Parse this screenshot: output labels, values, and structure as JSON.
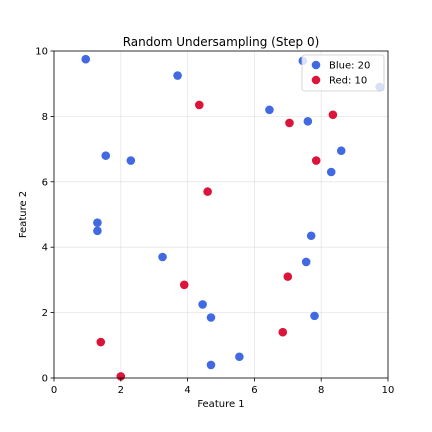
{
  "chart_data": {
    "type": "scatter",
    "title": "Random Undersampling (Step 0)",
    "xlabel": "Feature 1",
    "ylabel": "Feature 2",
    "xlim": [
      0,
      10
    ],
    "ylim": [
      0,
      10
    ],
    "xticks": [
      "0",
      "2",
      "4",
      "6",
      "8",
      "10"
    ],
    "yticks": [
      "0",
      "2",
      "4",
      "6",
      "8",
      "10"
    ],
    "grid": true,
    "legend_position": "top-right",
    "series": [
      {
        "name": "Blue: 20",
        "color": "#4169e1",
        "points": [
          [
            0.95,
            9.75
          ],
          [
            3.7,
            9.25
          ],
          [
            7.45,
            9.7
          ],
          [
            9.75,
            8.9
          ],
          [
            6.45,
            8.2
          ],
          [
            7.6,
            7.85
          ],
          [
            8.6,
            6.95
          ],
          [
            8.3,
            6.3
          ],
          [
            1.55,
            6.8
          ],
          [
            2.3,
            6.65
          ],
          [
            1.3,
            4.75
          ],
          [
            1.3,
            4.5
          ],
          [
            7.7,
            4.35
          ],
          [
            7.55,
            3.55
          ],
          [
            3.25,
            3.7
          ],
          [
            4.45,
            2.25
          ],
          [
            4.7,
            1.85
          ],
          [
            7.8,
            1.9
          ],
          [
            5.55,
            0.65
          ],
          [
            4.7,
            0.4
          ]
        ]
      },
      {
        "name": "Red: 10",
        "color": "#dc143c",
        "points": [
          [
            4.35,
            8.35
          ],
          [
            7.05,
            7.8
          ],
          [
            8.35,
            8.05
          ],
          [
            7.85,
            6.65
          ],
          [
            4.6,
            5.7
          ],
          [
            7.0,
            3.1
          ],
          [
            3.9,
            2.85
          ],
          [
            6.85,
            1.4
          ],
          [
            1.4,
            1.1
          ],
          [
            2.0,
            0.05
          ]
        ]
      }
    ]
  }
}
